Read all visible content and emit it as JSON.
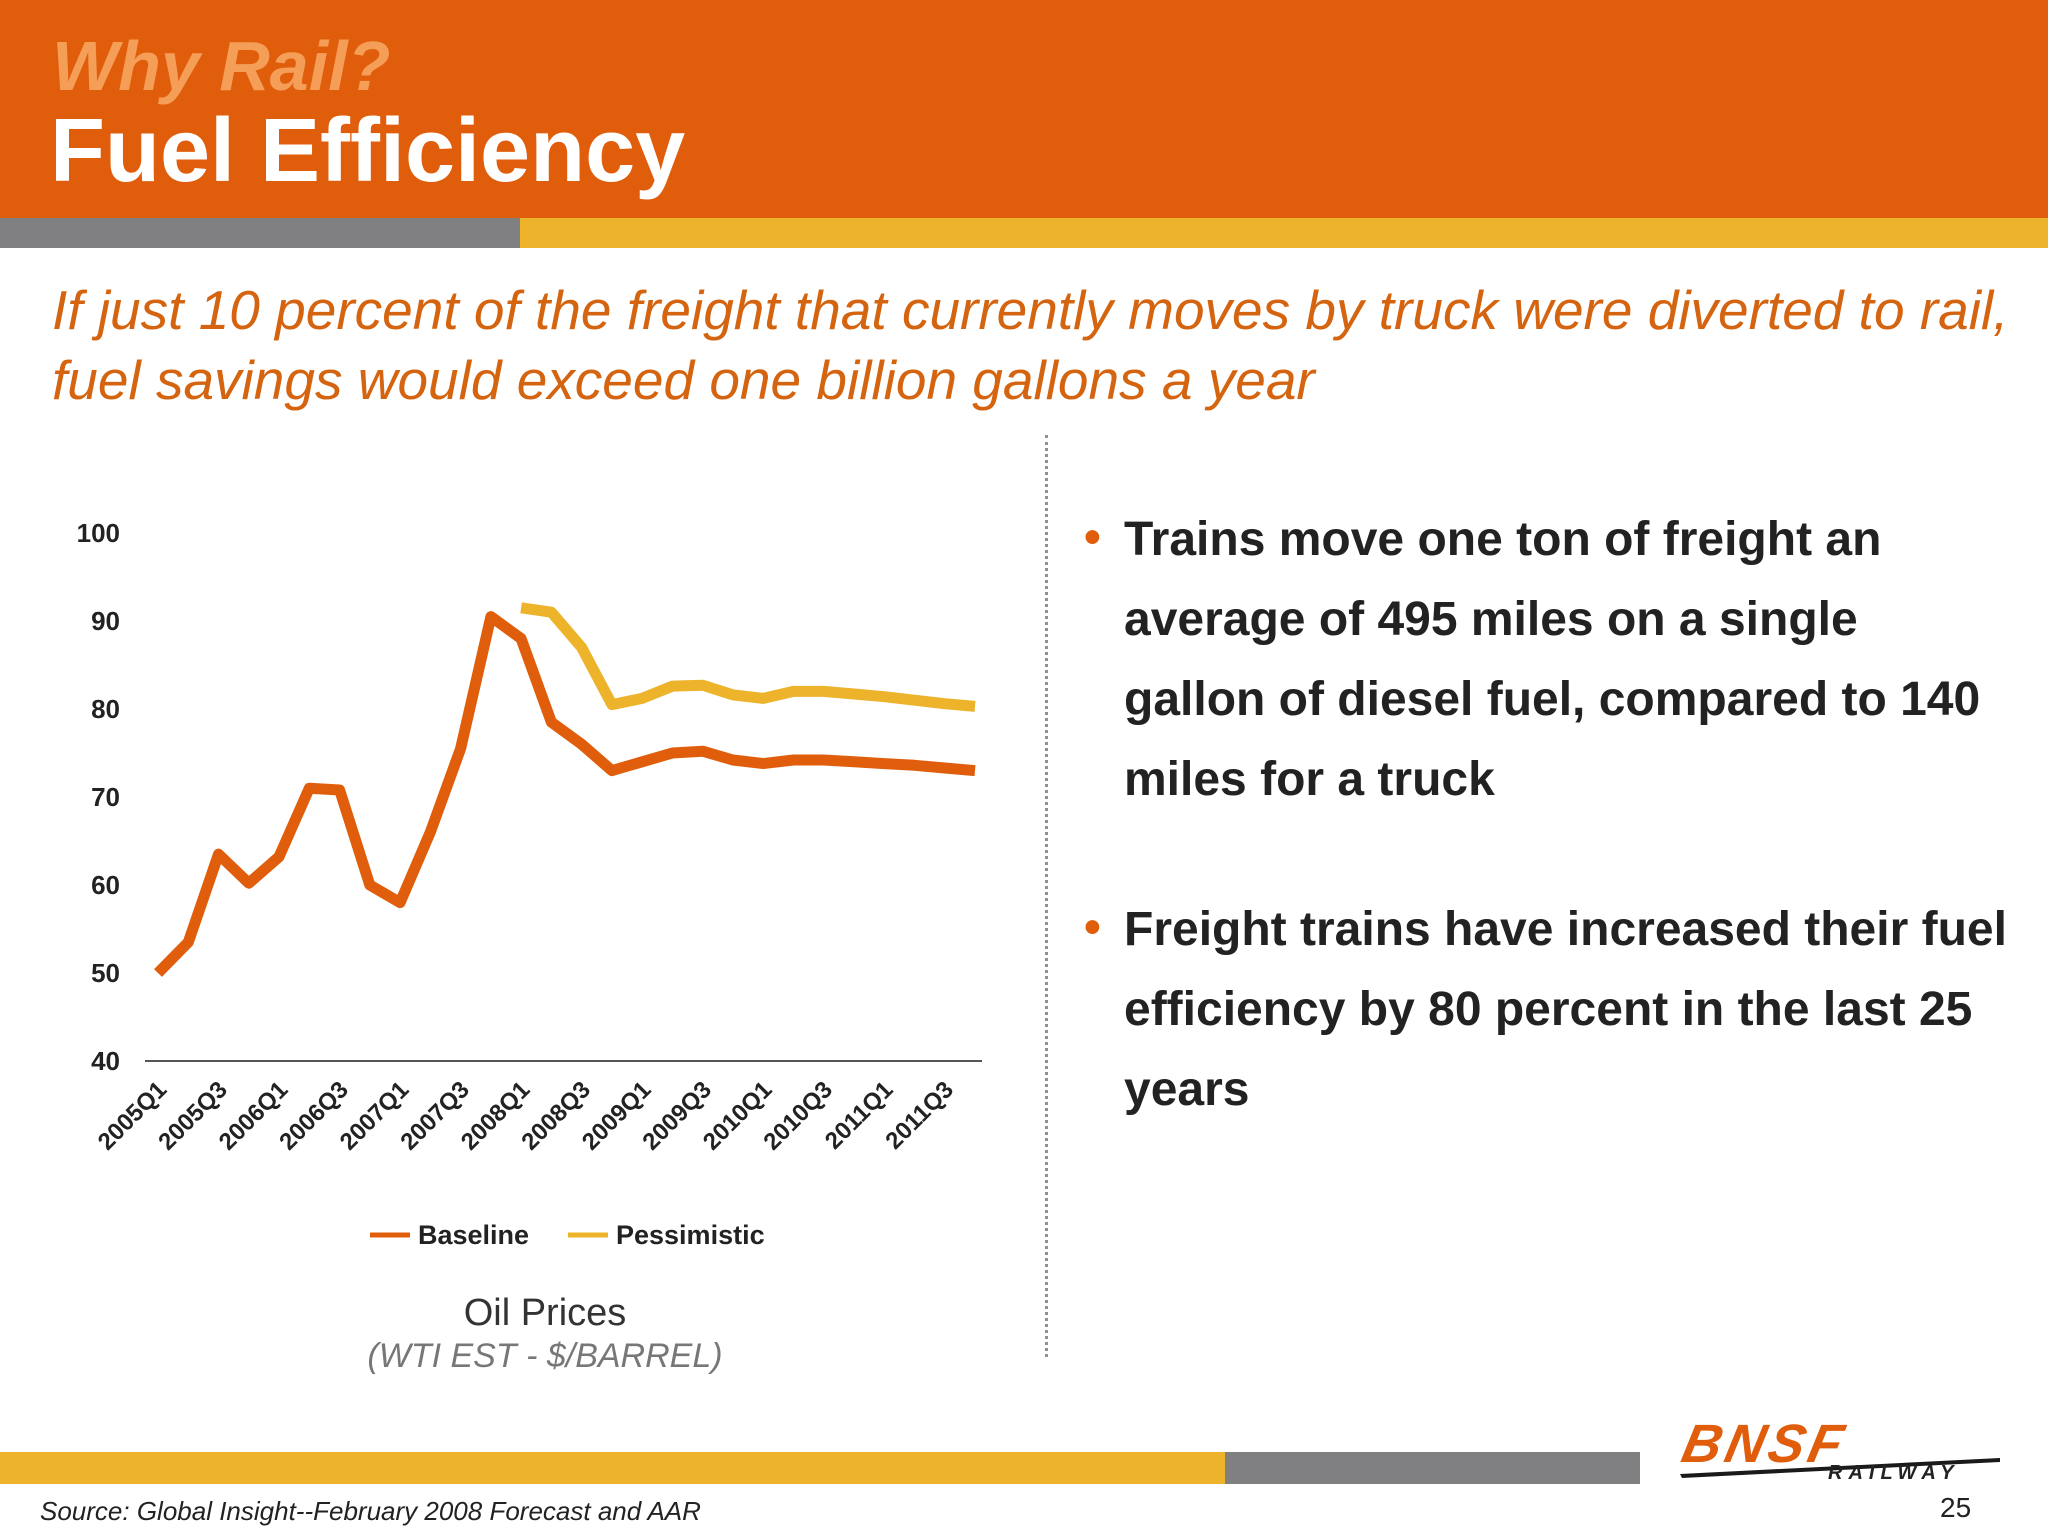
{
  "slide": {
    "kicker": "Why Rail?",
    "title": "Fuel Efficiency",
    "subtitle": "If just 10 percent of the freight that currently moves by truck were diverted to rail, fuel savings would exceed one billion gallons a year",
    "bullets": [
      "Trains move one ton of freight an average of 495 miles on a single gallon of diesel fuel, compared to 140 miles for a truck",
      "Freight trains have increased their fuel efficiency by 80 percent in the last 25 years"
    ],
    "source": "Source: Global Insight--February 2008 Forecast and AAR",
    "logo_text": "BNSF",
    "logo_subtext": "RAILWAY",
    "page_number": "25",
    "colors": {
      "header": "#e05d0b",
      "gold": "#ecb32b",
      "gray": "#808082",
      "baseline": "#e05d0b",
      "pessimistic": "#ecb32b"
    }
  },
  "chart_data": {
    "type": "line",
    "title": "Oil Prices",
    "subtitle": "(WTI EST - $/BARREL)",
    "x": [
      "2005Q1",
      "2005Q2",
      "2005Q3",
      "2005Q4",
      "2006Q1",
      "2006Q2",
      "2006Q3",
      "2006Q4",
      "2007Q1",
      "2007Q2",
      "2007Q3",
      "2007Q4",
      "2008Q1",
      "2008Q2",
      "2008Q3",
      "2008Q4",
      "2009Q1",
      "2009Q2",
      "2009Q3",
      "2009Q4",
      "2010Q1",
      "2010Q2",
      "2010Q3",
      "2010Q4",
      "2011Q1",
      "2011Q2",
      "2011Q3",
      "2011Q4"
    ],
    "tick_labels": [
      "2005Q1",
      "2005Q3",
      "2006Q1",
      "2006Q3",
      "2007Q1",
      "2007Q3",
      "2008Q1",
      "2008Q3",
      "2009Q1",
      "2009Q3",
      "2010Q1",
      "2010Q3",
      "2011Q1",
      "2011Q3"
    ],
    "yticks": [
      40,
      50,
      60,
      70,
      80,
      90,
      100
    ],
    "ylim": [
      40,
      100
    ],
    "series": [
      {
        "name": "Baseline",
        "values": [
          50,
          53.5,
          63.5,
          60.2,
          63.2,
          71,
          70.8,
          60,
          58,
          66,
          75.5,
          90.5,
          88,
          78.5,
          76,
          73,
          74,
          75,
          75.2,
          74.2,
          73.8,
          74.2,
          74.2,
          74,
          73.8,
          73.6,
          73.3,
          73
        ]
      },
      {
        "name": "Pessimistic",
        "values": [
          null,
          null,
          null,
          null,
          null,
          null,
          null,
          null,
          null,
          null,
          null,
          null,
          91.5,
          91,
          87,
          80.5,
          81.2,
          82.6,
          82.7,
          81.6,
          81.2,
          82,
          82,
          81.7,
          81.4,
          81,
          80.6,
          80.3
        ]
      }
    ],
    "legend": "bottom",
    "grid": false
  }
}
